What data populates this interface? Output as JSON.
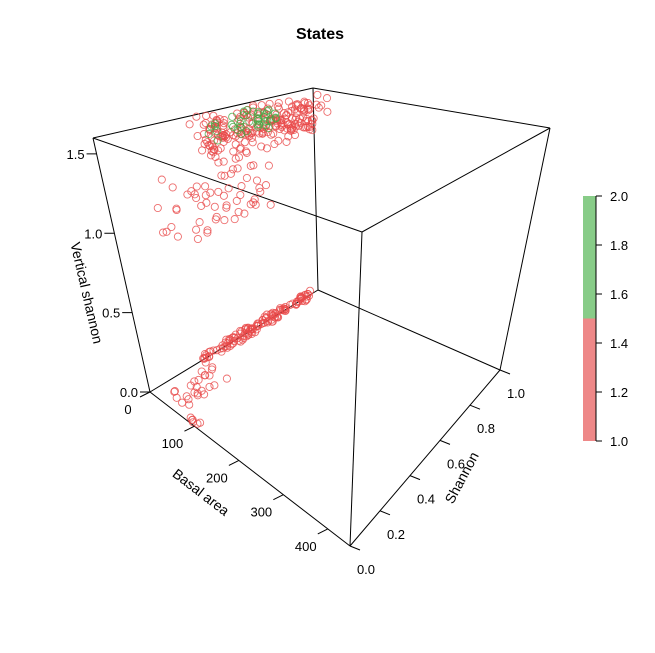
{
  "chart_data": {
    "type": "scatter",
    "projection": "3d",
    "title": "States",
    "xlabel": "Basal area",
    "ylabel": "Shannon",
    "zlabel": "Vertical shannon",
    "xlim": [
      0,
      450
    ],
    "ylim": [
      0,
      1
    ],
    "zlim": [
      0,
      1.6
    ],
    "x_ticks": [
      "0",
      "100",
      "200",
      "300",
      "400"
    ],
    "y_ticks": [
      "0.0",
      "0.2",
      "0.4",
      "0.6",
      "0.8",
      "1.0"
    ],
    "z_ticks": [
      "0.0",
      "0.5",
      "1.0",
      "1.5"
    ],
    "marker": "open-circle",
    "colorbar": {
      "range": [
        1.0,
        2.0
      ],
      "ticks": [
        "1.0",
        "1.2",
        "1.4",
        "1.6",
        "1.8",
        "2.0"
      ],
      "colors": [
        "#ee8888",
        "#88cc88"
      ],
      "split": 1.5
    },
    "series": [
      {
        "state": 1,
        "color": "#e84a4a",
        "clusters": [
          {
            "x": [
              5,
              60
            ],
            "y": [
              0.4,
              0.95
            ],
            "z": [
              1.35,
              1.6
            ],
            "n": 220
          },
          {
            "x": [
              10,
              70
            ],
            "y": [
              0.2,
              0.7
            ],
            "z": [
              0.9,
              1.3
            ],
            "n": 60
          },
          {
            "x": [
              0,
              10
            ],
            "y": [
              0.3,
              0.95
            ],
            "z": [
              0,
              0.05
            ],
            "n": 130
          },
          {
            "x": [
              30,
              70
            ],
            "y": [
              0.05,
              0.3
            ],
            "z": [
              0,
              0.05
            ],
            "n": 25
          },
          {
            "x": [
              80,
              110
            ],
            "y": [
              0,
              0.02
            ],
            "z": [
              0,
              0.03
            ],
            "n": 6
          }
        ]
      },
      {
        "state": 2,
        "color": "#44aa44",
        "clusters": [
          {
            "x": [
              15,
              50
            ],
            "y": [
              0.45,
              0.75
            ],
            "z": [
              1.45,
              1.6
            ],
            "n": 40
          }
        ]
      }
    ]
  }
}
